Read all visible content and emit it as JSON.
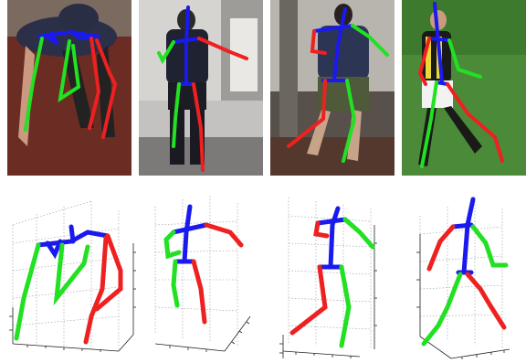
{
  "figure": {
    "photos": [
      {
        "pose": "crawling-on-hands-and-feet"
      },
      {
        "pose": "standing-arm-raised"
      },
      {
        "pose": "walking-phone-to-ear"
      },
      {
        "pose": "football-player-running"
      }
    ],
    "plots": [
      {
        "pose": "crawling-on-hands-and-feet"
      },
      {
        "pose": "standing-arm-raised"
      },
      {
        "pose": "walking-phone-to-ear"
      },
      {
        "pose": "football-player-running"
      }
    ],
    "limb_colors": {
      "left": "#22e022",
      "right": "#ee2020",
      "torso": "#1a1aee"
    }
  }
}
